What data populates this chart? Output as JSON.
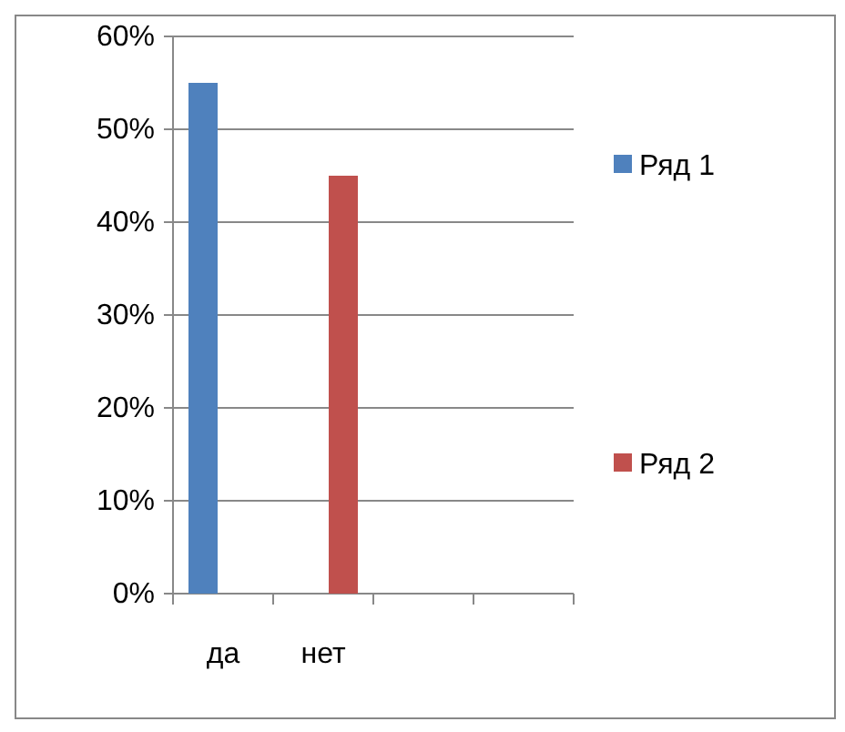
{
  "chart_data": {
    "type": "bar",
    "categories": [
      "да",
      "нет",
      null,
      null
    ],
    "series": [
      {
        "name": "Ряд 1",
        "color": "#4f81bd",
        "values": [
          55,
          null,
          null,
          null
        ]
      },
      {
        "name": "Ряд 2",
        "color": "#c0504d",
        "values": [
          null,
          45,
          null,
          null
        ]
      }
    ],
    "ylim": [
      0,
      60
    ],
    "yticks": [
      {
        "value": 0,
        "label": "0%"
      },
      {
        "value": 10,
        "label": "10%"
      },
      {
        "value": 20,
        "label": "20%"
      },
      {
        "value": 30,
        "label": "30%"
      },
      {
        "value": 40,
        "label": "40%"
      },
      {
        "value": 50,
        "label": "50%"
      },
      {
        "value": 60,
        "label": "60%"
      }
    ],
    "grid": "y",
    "legend": "right"
  }
}
